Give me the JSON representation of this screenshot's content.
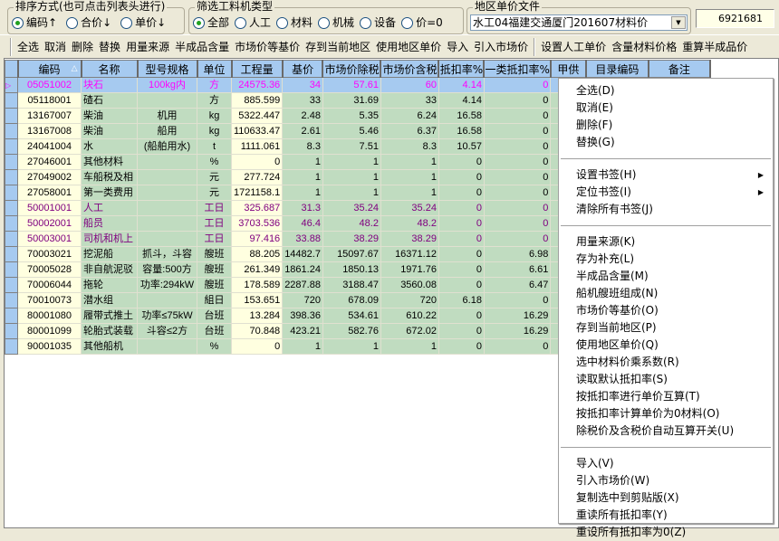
{
  "sort": {
    "legend": "排序方式(也可点击列表头进行)",
    "options": [
      "编码↑",
      "合价↓",
      "单价↓"
    ],
    "selected": 0
  },
  "filter": {
    "legend": "筛选工料机类型",
    "options": [
      "全部",
      "人工",
      "材料",
      "机械",
      "设备",
      "价=0"
    ],
    "selected": 0
  },
  "region": {
    "legend": "地区单价文件",
    "value": "水工04福建交通厦门201607材料价"
  },
  "total_value": "6921681",
  "toolbar": [
    "全选",
    "取消",
    "删除",
    "替换",
    "用量来源",
    "半成品含量",
    "市场价等基价",
    "存到当前地区",
    "使用地区单价",
    "导入",
    "引入市场价",
    "设置人工单价",
    "含量材料价格",
    "重算半成品价"
  ],
  "columns": [
    "编码",
    "名称",
    "型号规格",
    "单位",
    "工程量",
    "基价",
    "市场价除税",
    "市场价含税",
    "抵扣率%",
    "一类抵扣率%",
    "甲供",
    "目录编码",
    "备注"
  ],
  "rows": [
    [
      "05051002",
      "块石",
      "100kg内",
      "方",
      "24575.36",
      "34",
      "57.61",
      "60",
      "4.14",
      "0"
    ],
    [
      "05118001",
      "碴石",
      "",
      "方",
      "885.599",
      "33",
      "31.69",
      "33",
      "4.14",
      "0"
    ],
    [
      "13167007",
      "柴油",
      "机用",
      "kg",
      "5322.447",
      "2.48",
      "5.35",
      "6.24",
      "16.58",
      "0"
    ],
    [
      "13167008",
      "柴油",
      "船用",
      "kg",
      "110633.47",
      "2.61",
      "5.46",
      "6.37",
      "16.58",
      "0"
    ],
    [
      "24041004",
      "水",
      "(船舶用水)",
      "t",
      "1111.061",
      "8.3",
      "7.51",
      "8.3",
      "10.57",
      "0"
    ],
    [
      "27046001",
      "其他材料",
      "",
      "%",
      "0",
      "1",
      "1",
      "1",
      "0",
      "0"
    ],
    [
      "27049002",
      "车船税及相",
      "",
      "元",
      "277.724",
      "1",
      "1",
      "1",
      "0",
      "0"
    ],
    [
      "27058001",
      "第一类费用",
      "",
      "元",
      "1721158.1",
      "1",
      "1",
      "1",
      "0",
      "0"
    ],
    [
      "50001001",
      "人工",
      "",
      "工日",
      "325.687",
      "31.3",
      "35.24",
      "35.24",
      "0",
      "0"
    ],
    [
      "50002001",
      "船员",
      "",
      "工日",
      "3703.536",
      "46.4",
      "48.2",
      "48.2",
      "0",
      "0"
    ],
    [
      "50003001",
      "司机和机上",
      "",
      "工日",
      "97.416",
      "33.88",
      "38.29",
      "38.29",
      "0",
      "0"
    ],
    [
      "70003021",
      "挖泥船",
      "抓斗，斗容",
      "艘班",
      "88.205",
      "14482.7",
      "15097.67",
      "16371.12",
      "0",
      "6.98"
    ],
    [
      "70005028",
      "非自航泥驳",
      "容量:500方",
      "艘班",
      "261.349",
      "1861.24",
      "1850.13",
      "1971.76",
      "0",
      "6.61"
    ],
    [
      "70006044",
      "拖轮",
      "功率:294kW",
      "艘班",
      "178.589",
      "2287.88",
      "3188.47",
      "3560.08",
      "0",
      "6.47"
    ],
    [
      "70010073",
      "潜水组",
      "",
      "組日",
      "153.651",
      "720",
      "678.09",
      "720",
      "6.18",
      "0"
    ],
    [
      "80001080",
      "履带式推土",
      "功率≤75kW",
      "台班",
      "13.284",
      "398.36",
      "534.61",
      "610.22",
      "0",
      "16.29"
    ],
    [
      "80001099",
      "轮胎式装载",
      "斗容≤2方",
      "台班",
      "70.848",
      "423.21",
      "582.76",
      "672.02",
      "0",
      "16.29"
    ],
    [
      "90001035",
      "其他船机",
      "",
      "%",
      "0",
      "1",
      "1",
      "1",
      "0",
      "0"
    ]
  ],
  "colors": {
    "selected_row": "#a6caf0",
    "selected_text": "#ff00ff",
    "labor_text": "#800080",
    "code_bg": "#ffffe0",
    "cell_bg": "#c0dcc0"
  },
  "context_menu": [
    [
      {
        "label": "全选(D)"
      },
      {
        "label": "取消(E)"
      },
      {
        "label": "删除(F)"
      },
      {
        "label": "替换(G)"
      }
    ],
    [
      {
        "label": "设置书签(H)",
        "submenu": true
      },
      {
        "label": "定位书签(I)",
        "submenu": true
      },
      {
        "label": "清除所有书签(J)"
      }
    ],
    [
      {
        "label": "用量来源(K)"
      },
      {
        "label": "存为补充(L)"
      },
      {
        "label": "半成品含量(M)"
      },
      {
        "label": "船机艘班组成(N)"
      },
      {
        "label": "市场价等基价(O)"
      },
      {
        "label": "存到当前地区(P)"
      },
      {
        "label": "使用地区单价(Q)"
      },
      {
        "label": "选中材料价乘系数(R)"
      },
      {
        "label": "读取默认抵扣率(S)"
      },
      {
        "label": "按抵扣率进行单价互算(T)"
      },
      {
        "label": "按抵扣率计算单价为0材料(O)"
      },
      {
        "label": "除税价及含税价自动互算开关(U)"
      }
    ],
    [
      {
        "label": "导入(V)"
      },
      {
        "label": "引入市场价(W)"
      },
      {
        "label": "复制选中到剪贴版(X)"
      },
      {
        "label": "重读所有抵扣率(Y)"
      },
      {
        "label": "重设所有抵扣率为0(Z)"
      }
    ]
  ]
}
